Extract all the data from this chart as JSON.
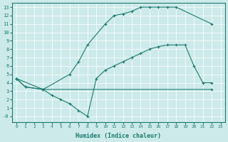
{
  "xlabel": "Humidex (Indice chaleur)",
  "background_color": "#cdeaea",
  "line_color": "#1a7a6e",
  "xlim": [
    -0.5,
    23.5
  ],
  "ylim": [
    -0.7,
    13.5
  ],
  "xticks": [
    0,
    1,
    2,
    3,
    4,
    5,
    6,
    7,
    8,
    9,
    10,
    11,
    12,
    13,
    14,
    15,
    16,
    17,
    18,
    19,
    20,
    21,
    22,
    23
  ],
  "yticks": [
    0,
    1,
    2,
    3,
    4,
    5,
    6,
    7,
    8,
    9,
    10,
    11,
    12,
    13
  ],
  "ylabel_neg0": true,
  "line1": {
    "x": [
      0,
      1,
      3,
      6,
      7,
      8,
      10,
      11,
      12,
      13,
      14,
      15,
      16,
      17,
      18,
      22
    ],
    "y": [
      4.5,
      3.5,
      3.2,
      5.0,
      6.5,
      8.5,
      11.0,
      12.0,
      12.2,
      12.5,
      13.0,
      13.0,
      13.0,
      13.0,
      13.0,
      11.0
    ]
  },
  "line2": {
    "x": [
      0,
      1,
      3,
      4,
      5,
      6,
      7,
      8,
      9,
      10,
      11,
      12,
      13,
      14,
      15,
      16,
      17,
      18,
      19,
      20,
      21,
      22
    ],
    "y": [
      4.5,
      3.5,
      3.2,
      2.5,
      2.0,
      1.5,
      0.7,
      0.0,
      4.5,
      5.5,
      6.0,
      6.5,
      7.0,
      7.5,
      8.0,
      8.3,
      8.5,
      8.5,
      8.5,
      6.0,
      4.0,
      4.0
    ]
  },
  "line3": {
    "x": [
      0,
      3,
      22
    ],
    "y": [
      4.5,
      3.2,
      3.2
    ]
  }
}
